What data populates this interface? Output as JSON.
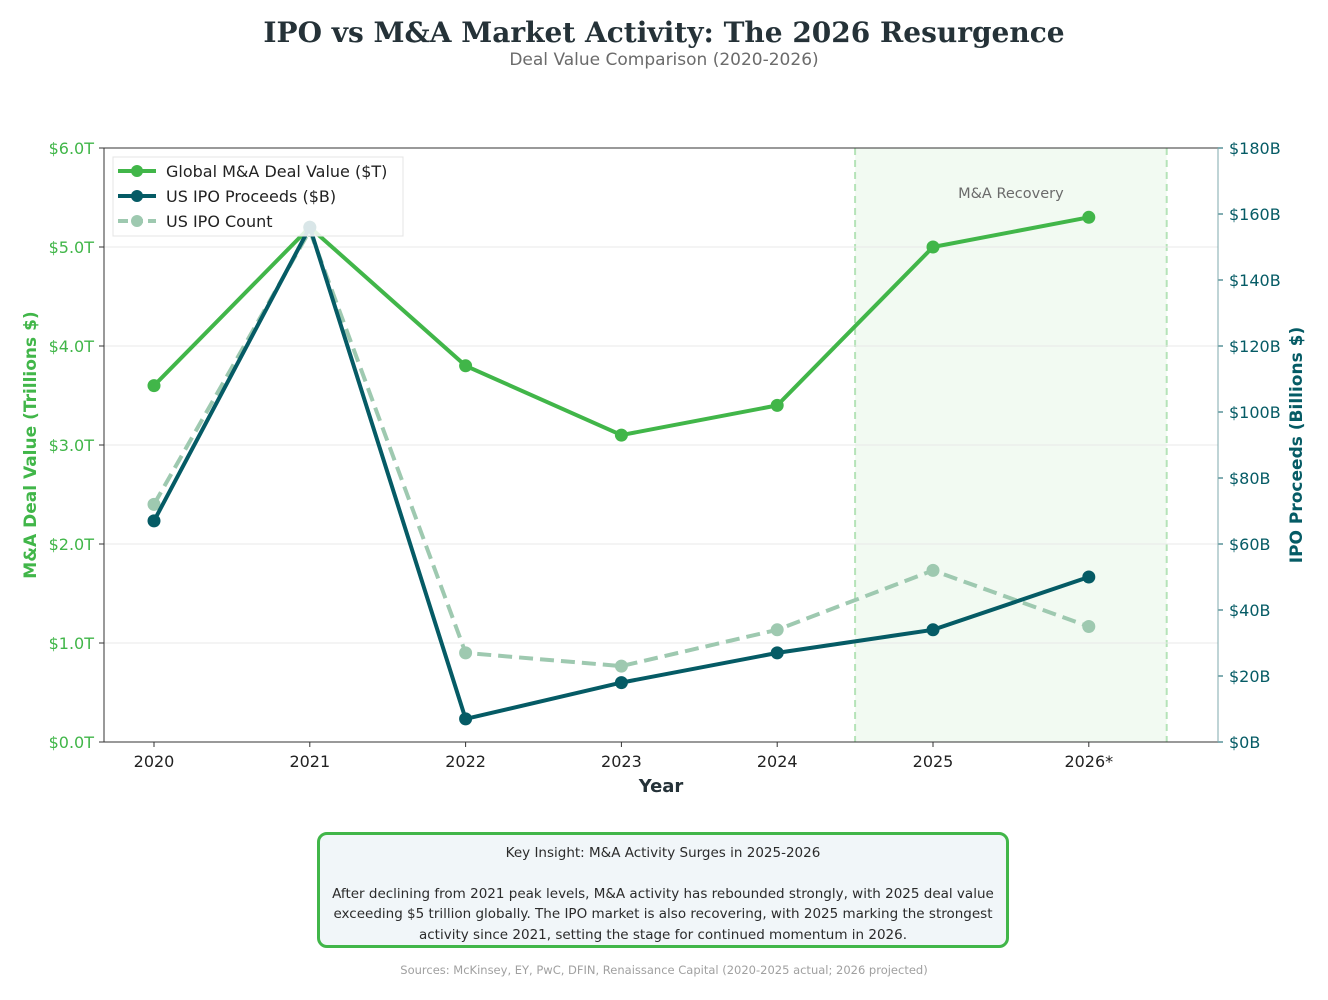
{
  "title": "IPO vs M&A Market Activity: The 2026 Resurgence",
  "subtitle": "Deal Value Comparison (2020-2026)",
  "chart_data": {
    "type": "line",
    "categories": [
      "2020",
      "2021",
      "2022",
      "2023",
      "2024",
      "2025",
      "2026*"
    ],
    "xlabel": "Year",
    "ylabel": "M&A Deal Value (Trillions $)",
    "ylabel_right": "IPO Proceeds (Billions $)",
    "ylim": [
      0,
      6
    ],
    "ylim_right": [
      0,
      180
    ],
    "yticks": [
      "$0.0T",
      "$1.0T",
      "$2.0T",
      "$3.0T",
      "$4.0T",
      "$5.0T",
      "$6.0T"
    ],
    "yticks_right": [
      "$0B",
      "$20B",
      "$40B",
      "$60B",
      "$80B",
      "$100B",
      "$120B",
      "$140B",
      "$160B",
      "$180B"
    ],
    "grid": true,
    "legend_position": "top-left",
    "series": [
      {
        "name": "Global M&A Deal Value ($T)",
        "axis": "left",
        "color": "#41b649",
        "style": "solid",
        "values": [
          3.6,
          5.2,
          3.8,
          3.1,
          3.4,
          5.0,
          5.3
        ]
      },
      {
        "name": "US IPO Proceeds ($B)",
        "axis": "right",
        "color": "#055b65",
        "style": "solid",
        "values": [
          67,
          156,
          7,
          18,
          27,
          34,
          50
        ]
      },
      {
        "name": "US IPO Count",
        "axis": "right",
        "color": "#9ec9b0",
        "style": "dashed",
        "values": [
          72,
          155,
          27,
          23,
          34,
          52,
          35
        ]
      }
    ],
    "annotation": {
      "label": "M&A Recovery",
      "span": [
        "2024.5",
        "2026.5"
      ],
      "color": "#41b649"
    }
  },
  "insight": {
    "heading": "Key Insight: M&A Activity Surges in 2025-2026",
    "lines": [
      "After declining from 2021 peak levels, M&A activity has rebounded strongly, with 2025 deal value",
      "exceeding $5 trillion globally. The IPO market is also recovering, with 2025 marking the strongest",
      "activity since 2021, setting the stage for continued momentum in 2026."
    ]
  },
  "sources": "Sources: McKinsey, EY, PwC, DFIN, Renaissance Capital (2020-2025 actual; 2026 projected)"
}
